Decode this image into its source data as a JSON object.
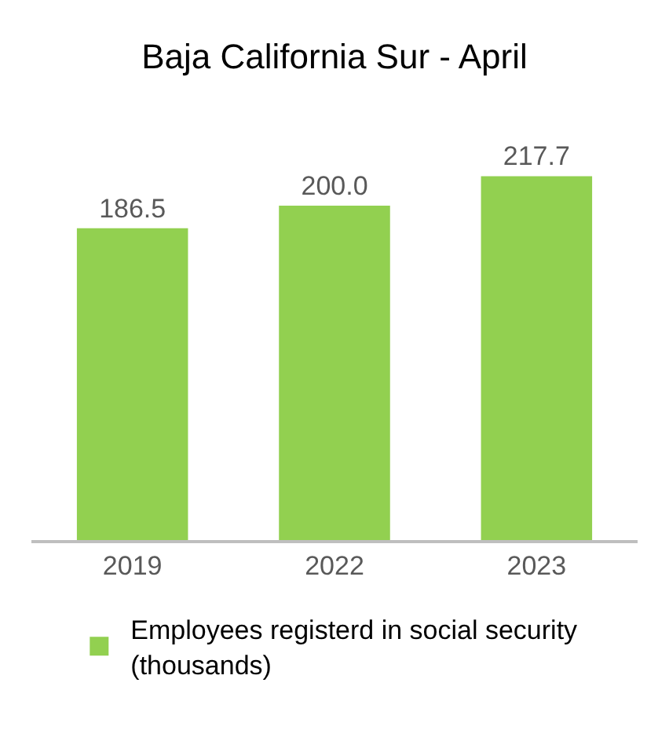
{
  "chart_data": {
    "type": "bar",
    "title": "Baja California Sur - April",
    "categories": [
      "2019",
      "2022",
      "2023"
    ],
    "series": [
      {
        "name": "Employees registerd in social security (thousands)",
        "color": "#92d050",
        "values": [
          186.5,
          200.0,
          217.7
        ],
        "value_labels": [
          "186.5",
          "200.0",
          "217.7"
        ]
      }
    ],
    "tick_labels": "x",
    "grid": false,
    "legend": "bottom"
  }
}
